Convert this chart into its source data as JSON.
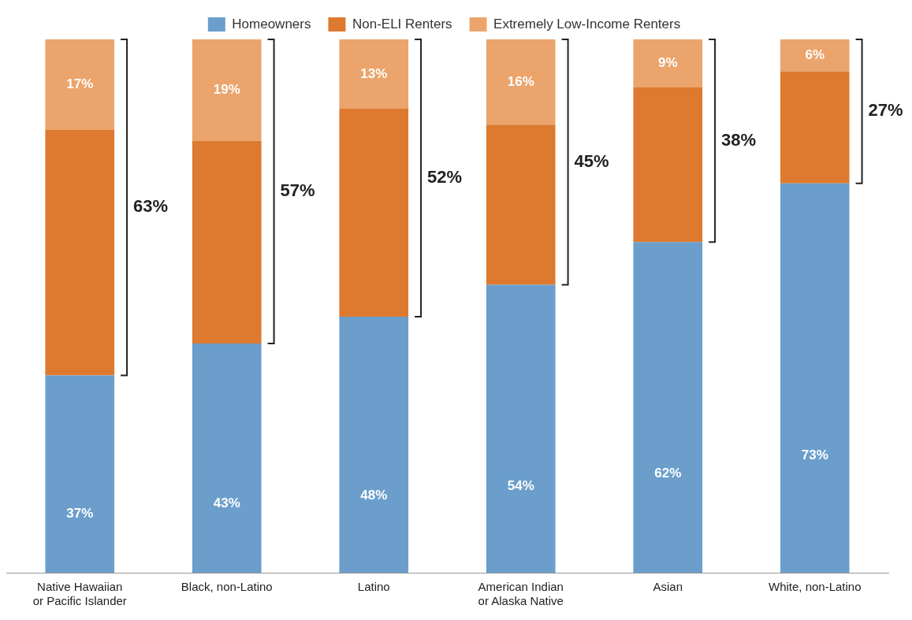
{
  "chart_data": {
    "type": "bar",
    "stacked": true,
    "categories": [
      "Native Hawaiian\nor Pacific Islander",
      "Black, non-Latino",
      "Latino",
      "American Indian\nor Alaska Native",
      "Asian",
      "White, non-Latino"
    ],
    "series": [
      {
        "name": "Homeowners",
        "color": "#6b9ecb",
        "values": [
          37,
          43,
          48,
          54,
          62,
          73
        ],
        "value_labels": [
          "37%",
          "43%",
          "48%",
          "54%",
          "62%",
          "73%"
        ]
      },
      {
        "name": "Non-ELI Renters",
        "color": "#dd7a2f",
        "values": [
          46,
          38,
          39,
          30,
          29,
          21
        ]
      },
      {
        "name": "Extremely Low-Income Renters",
        "color": "#eba46b",
        "values": [
          17,
          19,
          13,
          16,
          9,
          6
        ],
        "value_labels": [
          "17%",
          "19%",
          "13%",
          "16%",
          "9%",
          "6%"
        ]
      }
    ],
    "ylim": [
      0,
      100
    ],
    "tick_labels": "x",
    "grid": false,
    "legend": "top",
    "annotations": [
      "63%",
      "57%",
      "52%",
      "45%",
      "38%",
      "27%"
    ]
  }
}
